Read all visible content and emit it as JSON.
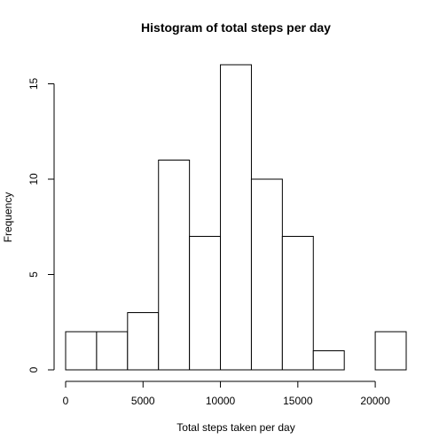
{
  "chart_data": {
    "type": "bar",
    "title": "Histogram of total steps per day",
    "xlabel": "Total steps taken per day",
    "ylabel": "Frequency",
    "bins": [
      {
        "from": 0,
        "to": 2000,
        "count": 2
      },
      {
        "from": 2000,
        "to": 4000,
        "count": 2
      },
      {
        "from": 4000,
        "to": 6000,
        "count": 3
      },
      {
        "from": 6000,
        "to": 8000,
        "count": 11
      },
      {
        "from": 8000,
        "to": 10000,
        "count": 7
      },
      {
        "from": 10000,
        "to": 12000,
        "count": 16
      },
      {
        "from": 12000,
        "to": 14000,
        "count": 10
      },
      {
        "from": 14000,
        "to": 16000,
        "count": 7
      },
      {
        "from": 16000,
        "to": 18000,
        "count": 1
      },
      {
        "from": 18000,
        "to": 20000,
        "count": 0
      },
      {
        "from": 20000,
        "to": 22000,
        "count": 2
      }
    ],
    "xlim": [
      0,
      22000
    ],
    "ylim": [
      0,
      16
    ],
    "xticks": [
      0,
      5000,
      10000,
      15000,
      20000
    ],
    "yticks": [
      0,
      5,
      10,
      15
    ],
    "grid": false
  }
}
